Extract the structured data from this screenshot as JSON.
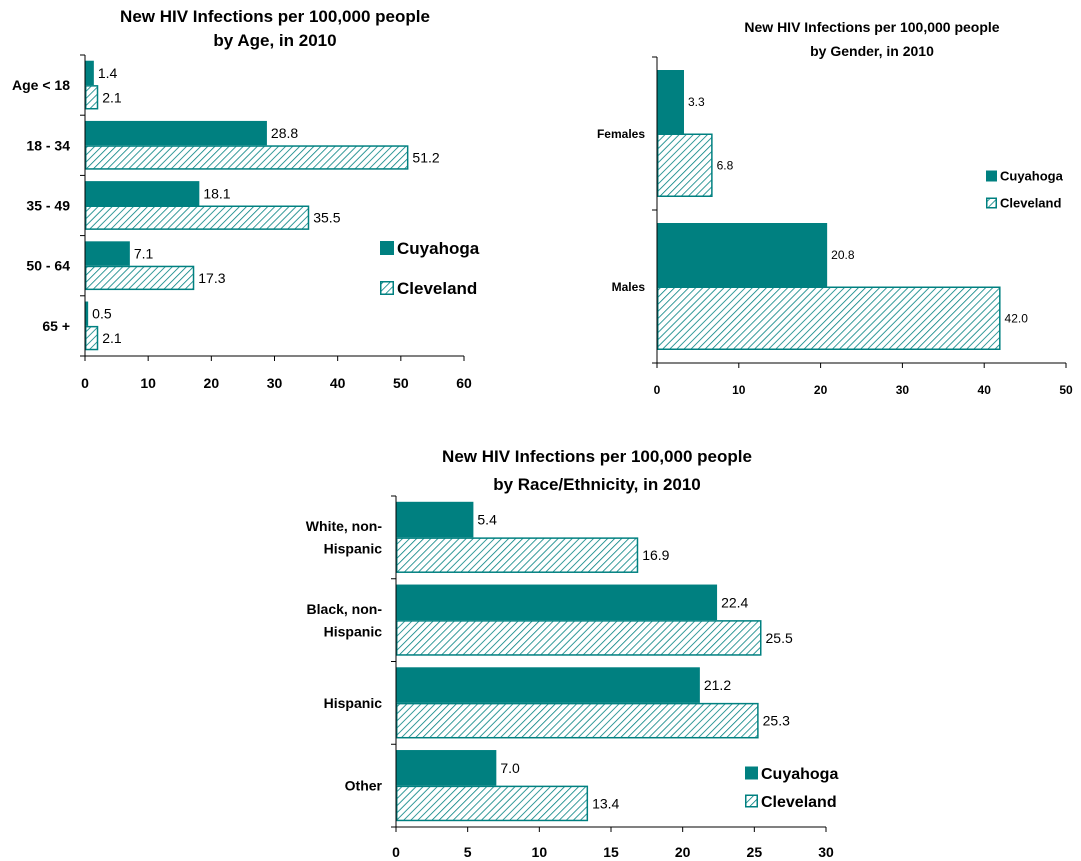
{
  "colors": {
    "cuyahoga": "#008080",
    "cleveland_stroke": "#008080",
    "cleveland_hatch": "#008080",
    "axis": "#000000"
  },
  "chart_data": [
    {
      "type": "bar",
      "orientation": "horizontal",
      "title": [
        "New HIV Infections per 100,000 people",
        "by Age, in 2010"
      ],
      "categories": [
        [
          "Age < 18"
        ],
        [
          "18 - 34"
        ],
        [
          "35 - 49"
        ],
        [
          "50 - 64"
        ],
        [
          "65 +"
        ]
      ],
      "series": [
        {
          "name": "Cuyahoga",
          "values": [
            1.4,
            28.8,
            18.1,
            7.1,
            0.5
          ]
        },
        {
          "name": "Cleveland",
          "values": [
            2.1,
            51.2,
            35.5,
            17.3,
            2.1
          ]
        }
      ],
      "xlim": [
        0,
        60
      ],
      "xticks": [
        0,
        10,
        20,
        30,
        40,
        50,
        60
      ],
      "data_label_format": "1",
      "grid": false,
      "legend_position": "right"
    },
    {
      "type": "bar",
      "orientation": "horizontal",
      "title": [
        "New HIV Infections per 100,000 people",
        "by Gender, in 2010"
      ],
      "categories": [
        [
          "Females"
        ],
        [
          "Males"
        ]
      ],
      "series": [
        {
          "name": "Cuyahoga",
          "values": [
            3.3,
            20.8
          ]
        },
        {
          "name": "Cleveland",
          "values": [
            6.8,
            42.0
          ]
        }
      ],
      "xlim": [
        0,
        50
      ],
      "xticks": [
        0,
        10,
        20,
        30,
        40,
        50
      ],
      "data_label_format": "1",
      "grid": false,
      "legend_position": "right"
    },
    {
      "type": "bar",
      "orientation": "horizontal",
      "title": [
        "New HIV Infections per 100,000 people",
        "by Race/Ethnicity, in 2010"
      ],
      "categories": [
        [
          "White, non-",
          "Hispanic"
        ],
        [
          "Black, non-",
          "Hispanic"
        ],
        [
          "Hispanic"
        ],
        [
          "Other"
        ]
      ],
      "series": [
        {
          "name": "Cuyahoga",
          "values": [
            5.4,
            22.4,
            21.2,
            7.0
          ]
        },
        {
          "name": "Cleveland",
          "values": [
            16.9,
            25.5,
            25.3,
            13.4
          ]
        }
      ],
      "xlim": [
        0,
        30
      ],
      "xticks": [
        0,
        5,
        10,
        15,
        20,
        25,
        30
      ],
      "data_label_format": "1",
      "grid": false,
      "legend_position": "bottom-right"
    }
  ]
}
